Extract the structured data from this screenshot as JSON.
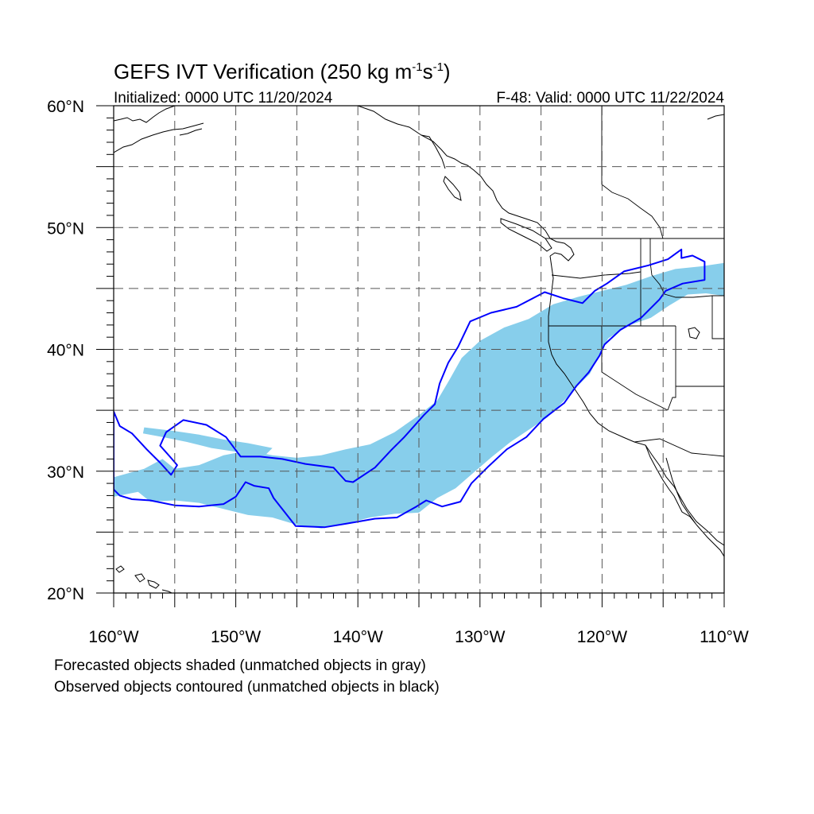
{
  "title": {
    "main": "GEFS IVT Verification (250 kg m",
    "sup1": "-1",
    "mid": "s",
    "sup2": "-1",
    "end": ")"
  },
  "subtitle_left": "Initialized: 0000 UTC 11/20/2024",
  "subtitle_right": "F-48: Valid: 0000 UTC 11/22/2024",
  "footer": [
    "Forecasted objects shaded (unmatched objects in gray)",
    "Observed objects contoured (unmatched objects in black)"
  ],
  "map": {
    "lon_range": [
      -160,
      -110
    ],
    "lat_range": [
      20,
      60
    ],
    "lon_ticks": [
      {
        "value": -160,
        "label": "160°W"
      },
      {
        "value": -150,
        "label": "150°W"
      },
      {
        "value": -140,
        "label": "140°W"
      },
      {
        "value": -130,
        "label": "130°W"
      },
      {
        "value": -120,
        "label": "120°W"
      },
      {
        "value": -110,
        "label": "110°W"
      }
    ],
    "lat_ticks": [
      {
        "value": 60,
        "label": "60°N"
      },
      {
        "value": 50,
        "label": "50°N"
      },
      {
        "value": 40,
        "label": "40°N"
      },
      {
        "value": 30,
        "label": "30°N"
      },
      {
        "value": 20,
        "label": "20°N"
      }
    ],
    "grid_lon": [
      -155,
      -150,
      -145,
      -140,
      -135,
      -130,
      -125,
      -120,
      -115
    ],
    "grid_lat": [
      55,
      50,
      45,
      40,
      35,
      30,
      25
    ],
    "grid_style": "dashed",
    "colors": {
      "forecast_fill": "#87ceeb",
      "observed_contour": "#0000ff",
      "coastline": "#000000",
      "grid": "#555555"
    },
    "forecast_object": [
      [
        -160,
        29.5
      ],
      [
        -157.5,
        30.2
      ],
      [
        -156,
        31
      ],
      [
        -155,
        30.2
      ],
      [
        -153,
        30.5
      ],
      [
        -151,
        31.3
      ],
      [
        -149,
        31.7
      ],
      [
        -147,
        31.3
      ],
      [
        -145,
        31.1
      ],
      [
        -143,
        31.3
      ],
      [
        -141,
        31.8
      ],
      [
        -139,
        32.2
      ],
      [
        -137,
        33.2
      ],
      [
        -135,
        34.6
      ],
      [
        -133.5,
        35.8
      ],
      [
        -132.5,
        37.5
      ],
      [
        -131.5,
        39.3
      ],
      [
        -130,
        40.7
      ],
      [
        -128,
        41.8
      ],
      [
        -126,
        42.5
      ],
      [
        -124,
        43.7
      ],
      [
        -122,
        44.3
      ],
      [
        -120,
        44.8
      ],
      [
        -118,
        45.3
      ],
      [
        -116,
        46
      ],
      [
        -114,
        46.6
      ],
      [
        -112,
        46.8
      ],
      [
        -110,
        47.1
      ],
      [
        -110,
        44.4
      ],
      [
        -111.5,
        44.6
      ],
      [
        -113,
        44.5
      ],
      [
        -114.5,
        43.6
      ],
      [
        -116,
        42.6
      ],
      [
        -118,
        41.9
      ],
      [
        -119.5,
        40.9
      ],
      [
        -120.3,
        39.4
      ],
      [
        -121,
        38
      ],
      [
        -122,
        37
      ],
      [
        -123,
        35.9
      ],
      [
        -124.5,
        34.4
      ],
      [
        -126,
        33.4
      ],
      [
        -127.5,
        32.4
      ],
      [
        -129,
        31.2
      ],
      [
        -130.5,
        29.9
      ],
      [
        -132,
        28.6
      ],
      [
        -133.5,
        27.8
      ],
      [
        -135,
        26.6
      ],
      [
        -137,
        26.5
      ],
      [
        -139,
        26.2
      ],
      [
        -141,
        25.7
      ],
      [
        -143,
        25.3
      ],
      [
        -145,
        25.6
      ],
      [
        -147,
        26.2
      ],
      [
        -149,
        26.4
      ],
      [
        -151,
        26.9
      ],
      [
        -153,
        27.4
      ],
      [
        -155,
        27.6
      ],
      [
        -157,
        27.5
      ],
      [
        -158,
        28.3
      ],
      [
        -160,
        27.9
      ]
    ],
    "forecast_object_2": [
      [
        -157.5,
        33.6
      ],
      [
        -155,
        33.3
      ],
      [
        -153,
        33
      ],
      [
        -151,
        32.6
      ],
      [
        -149,
        32.3
      ],
      [
        -147,
        31.9
      ],
      [
        -147.5,
        31.4
      ],
      [
        -150,
        31.6
      ],
      [
        -152,
        31.9
      ],
      [
        -154,
        32.4
      ],
      [
        -156,
        32.8
      ],
      [
        -157.6,
        33.1
      ]
    ],
    "observed_contour": [
      [
        -160,
        34.9
      ],
      [
        -159.5,
        33.7
      ],
      [
        -158.5,
        33.1
      ],
      [
        -157.3,
        31.8
      ],
      [
        -156.2,
        30.7
      ],
      [
        -155.3,
        29.7
      ],
      [
        -154.8,
        30.5
      ],
      [
        -155.4,
        31.2
      ],
      [
        -156.2,
        32.1
      ],
      [
        -155.7,
        33.2
      ],
      [
        -154.3,
        34.2
      ],
      [
        -152.4,
        33.8
      ],
      [
        -150.8,
        32.8
      ],
      [
        -149.6,
        31.2
      ],
      [
        -148,
        31.2
      ],
      [
        -146.2,
        31
      ],
      [
        -144.3,
        30.6
      ],
      [
        -142,
        30.3
      ],
      [
        -141,
        29.2
      ],
      [
        -140.4,
        29.1
      ],
      [
        -138.6,
        30.3
      ],
      [
        -137.3,
        31.7
      ],
      [
        -136.2,
        32.8
      ],
      [
        -134.6,
        34.6
      ],
      [
        -133.7,
        35.5
      ],
      [
        -133.3,
        37.2
      ],
      [
        -132.6,
        38.9
      ],
      [
        -131.8,
        40.2
      ],
      [
        -130.8,
        42.3
      ],
      [
        -129.1,
        43
      ],
      [
        -127,
        43.5
      ],
      [
        -124.7,
        44.7
      ],
      [
        -123.2,
        44.2
      ],
      [
        -121.6,
        43.8
      ],
      [
        -120.6,
        44.8
      ],
      [
        -119.6,
        45.4
      ],
      [
        -118.2,
        46.4
      ],
      [
        -116.2,
        46.9
      ],
      [
        -114.6,
        47.4
      ],
      [
        -113.5,
        48.2
      ],
      [
        -113.5,
        47.5
      ],
      [
        -112.6,
        47.7
      ],
      [
        -111.6,
        47.2
      ],
      [
        -111.6,
        45.7
      ],
      [
        -113.4,
        45.4
      ],
      [
        -114.8,
        44.8
      ],
      [
        -115.3,
        44.1
      ],
      [
        -116.8,
        42.6
      ],
      [
        -118.5,
        41.6
      ],
      [
        -119.8,
        40.4
      ],
      [
        -120.2,
        39.5
      ],
      [
        -121.1,
        38.1
      ],
      [
        -122.1,
        37
      ],
      [
        -123.1,
        35.6
      ],
      [
        -124.8,
        34.3
      ],
      [
        -126.2,
        32.8
      ],
      [
        -127.8,
        31.8
      ],
      [
        -129.3,
        30.4
      ],
      [
        -130.7,
        29
      ],
      [
        -131.6,
        27.5
      ],
      [
        -133.1,
        27.1
      ],
      [
        -134.4,
        27.6
      ],
      [
        -135.2,
        27.1
      ],
      [
        -136.8,
        26.2
      ],
      [
        -138.6,
        26.1
      ],
      [
        -140.9,
        25.7
      ],
      [
        -142.7,
        25.4
      ],
      [
        -145.1,
        25.5
      ],
      [
        -146.2,
        26.9
      ],
      [
        -146.9,
        27.8
      ],
      [
        -147.3,
        28.6
      ],
      [
        -148.5,
        28.8
      ],
      [
        -149.2,
        29.1
      ],
      [
        -150,
        27.9
      ],
      [
        -151,
        27.3
      ],
      [
        -153,
        27.1
      ],
      [
        -155,
        27.2
      ],
      [
        -157,
        27.6
      ],
      [
        -158.5,
        27.7
      ],
      [
        -159.5,
        28
      ],
      [
        -160,
        28.5
      ]
    ]
  }
}
